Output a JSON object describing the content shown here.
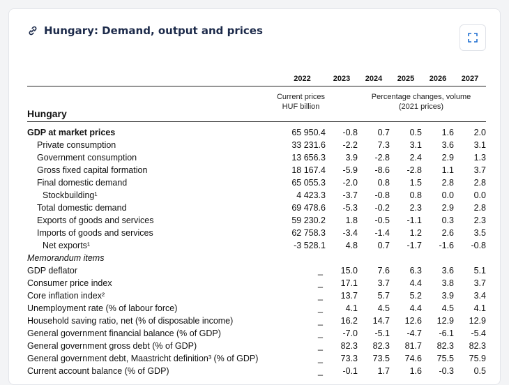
{
  "title": "Hungary: Demand, output and prices",
  "table": {
    "country": "Hungary",
    "years": [
      "2022",
      "2023",
      "2024",
      "2025",
      "2026",
      "2027"
    ],
    "current_prices_label": "Current prices HUF billion",
    "current_prices_line1": "Current prices",
    "current_prices_line2": "HUF billion",
    "pct_line1": "Percentage changes, volume",
    "pct_line2": "(2021 prices)",
    "rows": [
      {
        "label": "GDP at market prices",
        "style": "bold",
        "c2022": "65 950.4",
        "v": [
          "-0.8",
          "0.7",
          "0.5",
          "1.6",
          "2.0"
        ]
      },
      {
        "label": "Private consumption",
        "style": "i1",
        "c2022": "33 231.6",
        "v": [
          "-2.2",
          "7.3",
          "3.1",
          "3.6",
          "3.1"
        ]
      },
      {
        "label": "Government consumption",
        "style": "i1",
        "c2022": "13 656.3",
        "v": [
          "3.9",
          "-2.8",
          "2.4",
          "2.9",
          "1.3"
        ]
      },
      {
        "label": "Gross fixed capital formation",
        "style": "i1",
        "c2022": "18 167.4",
        "v": [
          "-5.9",
          "-8.6",
          "-2.8",
          "1.1",
          "3.7"
        ]
      },
      {
        "label": "Final domestic demand",
        "style": "i1",
        "c2022": "65 055.3",
        "v": [
          "-2.0",
          "0.8",
          "1.5",
          "2.8",
          "2.8"
        ]
      },
      {
        "label": "Stockbuilding¹",
        "style": "i2",
        "c2022": "4 423.3",
        "v": [
          "-3.7",
          "-0.8",
          "0.8",
          "0.0",
          "0.0"
        ]
      },
      {
        "label": "Total domestic demand",
        "style": "i1",
        "c2022": "69 478.6",
        "v": [
          "-5.3",
          "-0.2",
          "2.3",
          "2.9",
          "2.8"
        ]
      },
      {
        "label": "Exports of goods and services",
        "style": "i1",
        "c2022": "59 230.2",
        "v": [
          "1.8",
          "-0.5",
          "-1.1",
          "0.3",
          "2.3"
        ]
      },
      {
        "label": "Imports of goods and services",
        "style": "i1",
        "c2022": "62 758.3",
        "v": [
          "-3.4",
          "-1.4",
          "1.2",
          "2.6",
          "3.5"
        ]
      },
      {
        "label": "Net exports¹",
        "style": "i2",
        "c2022": "-3 528.1",
        "v": [
          "4.8",
          "0.7",
          "-1.7",
          "-1.6",
          "-0.8"
        ]
      },
      {
        "label": "Memorandum items",
        "style": "memo",
        "c2022": "",
        "v": [
          "",
          "",
          "",
          "",
          ""
        ]
      },
      {
        "label": "GDP deflator",
        "style": "",
        "c2022": "_",
        "v": [
          "15.0",
          "7.6",
          "6.3",
          "3.6",
          "5.1"
        ]
      },
      {
        "label": "Consumer price index",
        "style": "",
        "c2022": "_",
        "v": [
          "17.1",
          "3.7",
          "4.4",
          "3.8",
          "3.7"
        ]
      },
      {
        "label": "Core inflation index²",
        "style": "",
        "c2022": "_",
        "v": [
          "13.7",
          "5.7",
          "5.2",
          "3.9",
          "3.4"
        ]
      },
      {
        "label": "Unemployment rate (% of labour force)",
        "style": "",
        "c2022": "_",
        "v": [
          "4.1",
          "4.5",
          "4.4",
          "4.5",
          "4.1"
        ]
      },
      {
        "label": "Household saving ratio, net (% of disposable income)",
        "style": "",
        "c2022": "_",
        "v": [
          "16.2",
          "14.7",
          "12.6",
          "12.9",
          "12.9"
        ]
      },
      {
        "label": "General government financial balance (% of GDP)",
        "style": "",
        "c2022": "_",
        "v": [
          "-7.0",
          "-5.1",
          "-4.7",
          "-6.1",
          "-5.4"
        ]
      },
      {
        "label": "General government gross debt (% of GDP)",
        "style": "",
        "c2022": "_",
        "v": [
          "82.3",
          "82.3",
          "81.7",
          "82.3",
          "82.3"
        ]
      },
      {
        "label": "General government debt, Maastricht definition³ (% of GDP)",
        "style": "",
        "c2022": "_",
        "v": [
          "73.3",
          "73.5",
          "74.6",
          "75.5",
          "75.9"
        ]
      },
      {
        "label": "Current account balance (% of GDP)",
        "style": "",
        "c2022": "_",
        "v": [
          "-0.1",
          "1.7",
          "1.6",
          "-0.3",
          "0.5"
        ]
      }
    ]
  },
  "colors": {
    "title": "#1c2a4a",
    "accent": "#1f6fd1"
  },
  "icons": {
    "title_icon": "link-icon",
    "expand": "expand-icon"
  }
}
